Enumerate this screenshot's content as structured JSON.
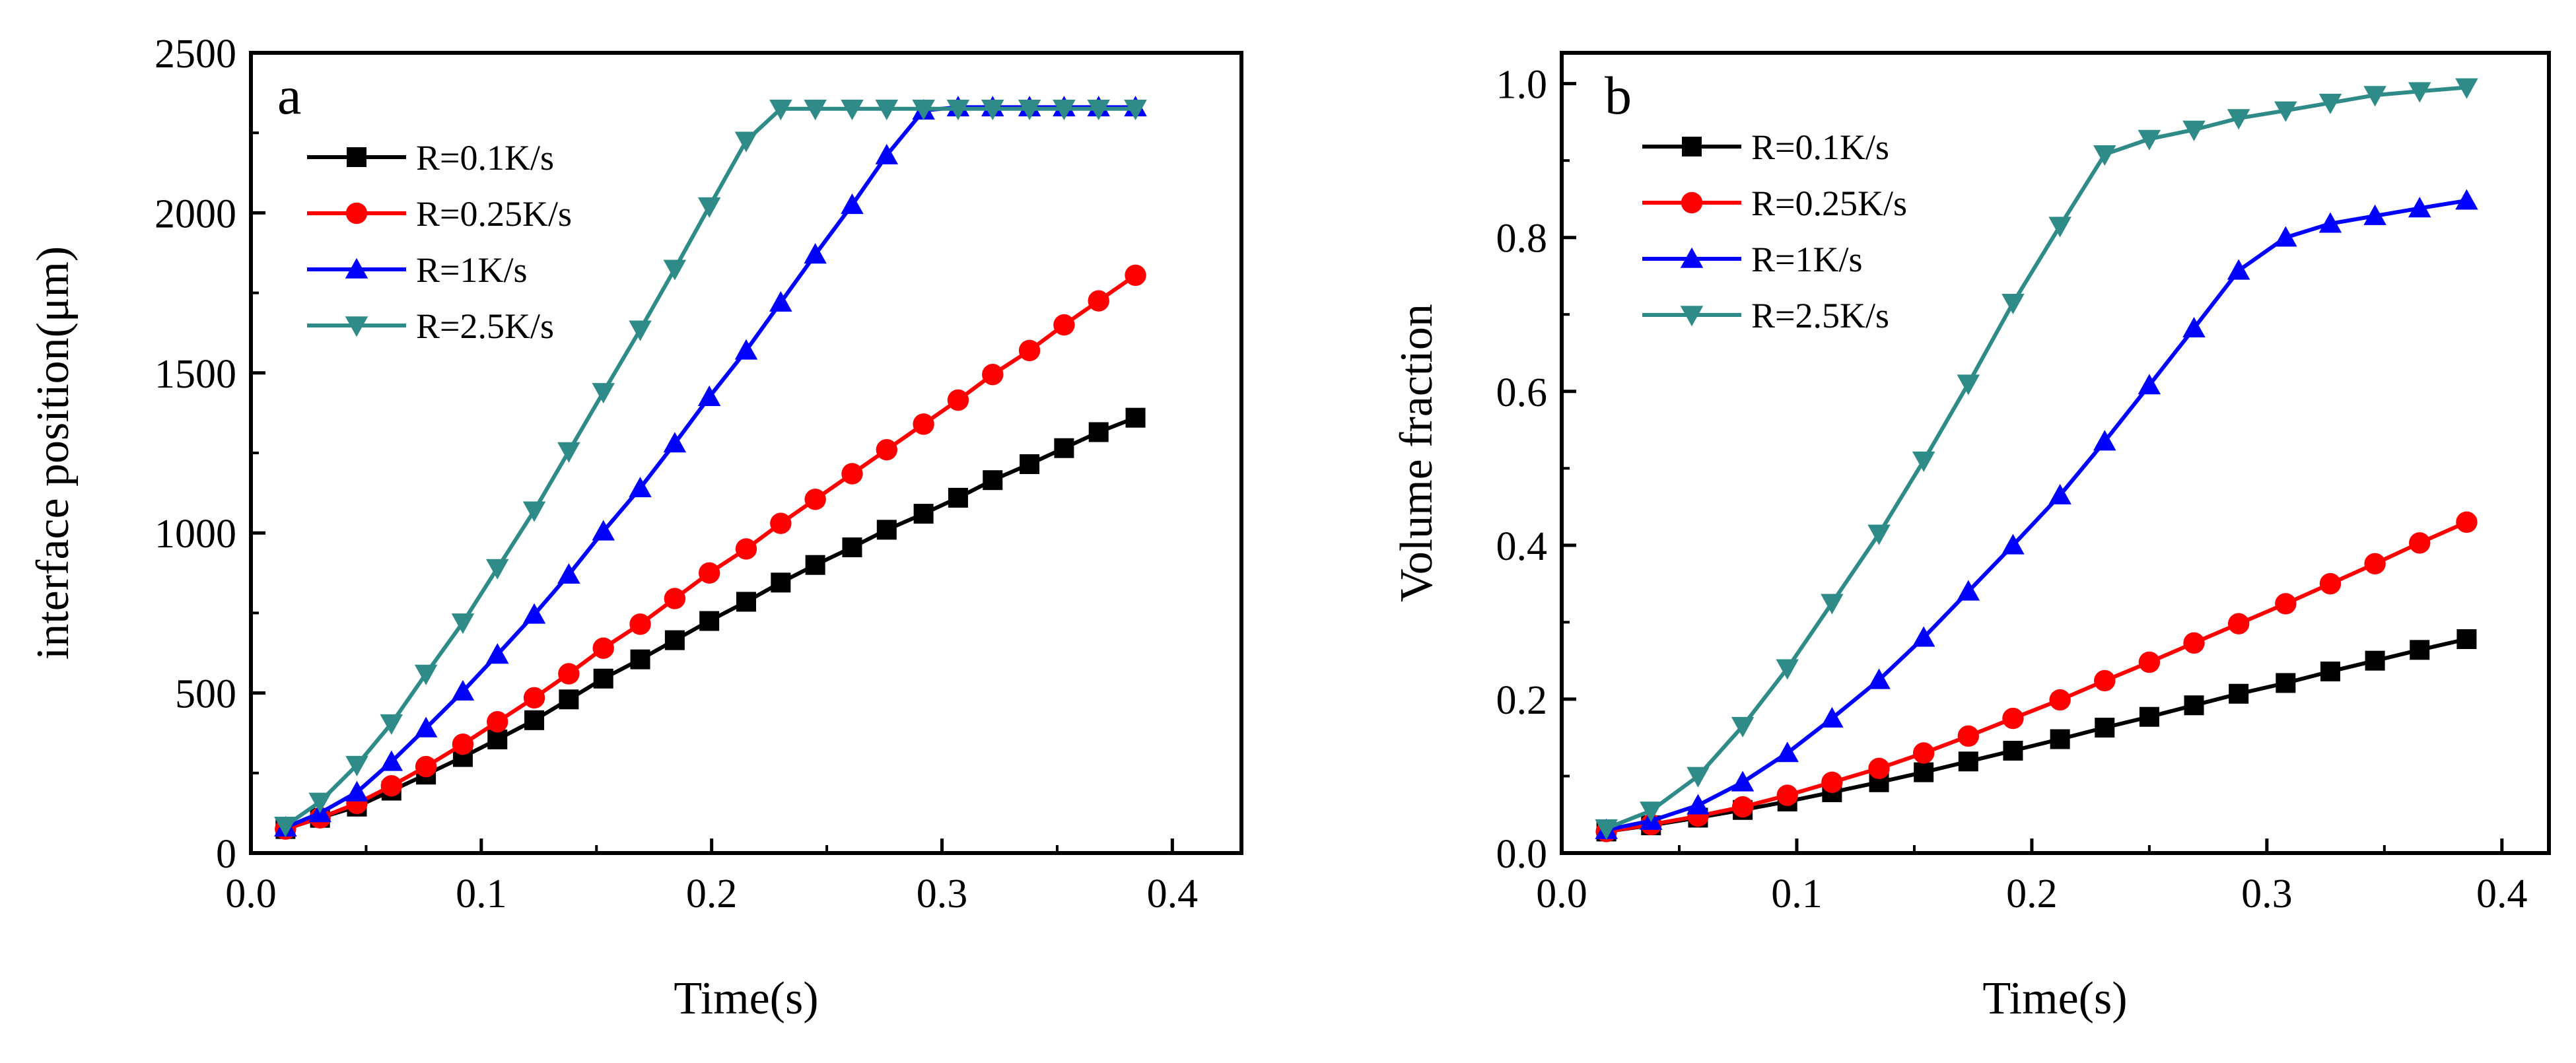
{
  "chart_data": [
    {
      "type": "line",
      "panel_label": "a",
      "title": "",
      "xlabel": "Time(s)",
      "ylabel": "interface position(μm)",
      "xlim": [
        0.0,
        0.43
      ],
      "ylim": [
        0,
        2500
      ],
      "xticks": [
        0.0,
        0.1,
        0.2,
        0.3,
        0.4
      ],
      "xtick_labels": [
        "0.0",
        "0.1",
        "0.2",
        "0.3",
        "0.4"
      ],
      "yticks": [
        0,
        500,
        1000,
        1500,
        2000,
        2500
      ],
      "ytick_labels": [
        "0",
        "500",
        "1000",
        "1500",
        "2000",
        "2500"
      ],
      "legend_position": "top-left",
      "x": [
        0.015,
        0.03,
        0.046,
        0.061,
        0.076,
        0.092,
        0.107,
        0.123,
        0.138,
        0.153,
        0.169,
        0.184,
        0.199,
        0.215,
        0.23,
        0.245,
        0.261,
        0.276,
        0.292,
        0.307,
        0.322,
        0.338,
        0.353,
        0.368,
        0.384
      ],
      "series": [
        {
          "name": "R=0.1K/s",
          "color": "#000000",
          "marker": "square",
          "values": [
            75,
            110,
            145,
            195,
            245,
            300,
            355,
            415,
            480,
            545,
            605,
            665,
            725,
            785,
            845,
            900,
            955,
            1010,
            1060,
            1110,
            1165,
            1215,
            1265,
            1315,
            1360
          ]
        },
        {
          "name": "R=0.25K/s",
          "color": "#ff0000",
          "marker": "circle",
          "values": [
            75,
            110,
            155,
            210,
            270,
            340,
            410,
            485,
            560,
            640,
            715,
            795,
            875,
            950,
            1030,
            1105,
            1185,
            1260,
            1340,
            1415,
            1495,
            1570,
            1650,
            1725,
            1805
          ]
        },
        {
          "name": "R=1K/s",
          "color": "#0000ff",
          "marker": "triangle-up",
          "values": [
            80,
            125,
            190,
            285,
            390,
            505,
            620,
            745,
            870,
            1005,
            1140,
            1280,
            1425,
            1570,
            1720,
            1870,
            2025,
            2180,
            2320,
            2330,
            2330,
            2330,
            2330,
            2330,
            2330
          ]
        },
        {
          "name": "R=2.5K/s",
          "color": "#2e8b87",
          "marker": "triangle-down",
          "values": [
            85,
            160,
            275,
            405,
            560,
            720,
            890,
            1070,
            1255,
            1440,
            1635,
            1825,
            2020,
            2225,
            2325,
            2325,
            2325,
            2325,
            2325,
            2325,
            2325,
            2325,
            2325,
            2325,
            2325
          ]
        }
      ]
    },
    {
      "type": "line",
      "panel_label": "b",
      "title": "",
      "xlabel": "Time(s)",
      "ylabel": "Volume fraction",
      "xlim": [
        0.0,
        0.42
      ],
      "ylim": [
        0.0,
        1.04
      ],
      "xticks": [
        0.0,
        0.1,
        0.2,
        0.3,
        0.4
      ],
      "xtick_labels": [
        "0.0",
        "0.1",
        "0.2",
        "0.3",
        "0.4"
      ],
      "yticks": [
        0.0,
        0.2,
        0.4,
        0.6,
        0.8,
        1.0
      ],
      "ytick_labels": [
        "0.0",
        "0.2",
        "0.4",
        "0.6",
        "0.8",
        "1.0"
      ],
      "legend_position": "top-left",
      "x": [
        0.019,
        0.038,
        0.058,
        0.077,
        0.096,
        0.115,
        0.135,
        0.154,
        0.173,
        0.192,
        0.212,
        0.231,
        0.25,
        0.269,
        0.288,
        0.308,
        0.327,
        0.346,
        0.365,
        0.385
      ],
      "series": [
        {
          "name": "R=0.1K/s",
          "color": "#000000",
          "marker": "square",
          "values": [
            0.028,
            0.036,
            0.046,
            0.056,
            0.067,
            0.079,
            0.092,
            0.105,
            0.119,
            0.133,
            0.148,
            0.163,
            0.177,
            0.192,
            0.207,
            0.221,
            0.236,
            0.25,
            0.264,
            0.278
          ]
        },
        {
          "name": "R=0.25K/s",
          "color": "#ff0000",
          "marker": "circle",
          "values": [
            0.028,
            0.037,
            0.048,
            0.06,
            0.075,
            0.092,
            0.11,
            0.13,
            0.152,
            0.175,
            0.199,
            0.224,
            0.248,
            0.273,
            0.298,
            0.324,
            0.35,
            0.376,
            0.403,
            0.43
          ]
        },
        {
          "name": "R=1K/s",
          "color": "#0000ff",
          "marker": "triangle-up",
          "values": [
            0.03,
            0.042,
            0.062,
            0.092,
            0.13,
            0.175,
            0.225,
            0.28,
            0.34,
            0.4,
            0.465,
            0.535,
            0.608,
            0.682,
            0.757,
            0.8,
            0.818,
            0.828,
            0.838,
            0.848
          ]
        },
        {
          "name": "R=2.5K/s",
          "color": "#2e8b87",
          "marker": "triangle-down",
          "values": [
            0.032,
            0.055,
            0.1,
            0.165,
            0.24,
            0.325,
            0.415,
            0.51,
            0.61,
            0.715,
            0.815,
            0.908,
            0.928,
            0.94,
            0.955,
            0.965,
            0.975,
            0.985,
            0.99,
            0.995
          ]
        }
      ]
    }
  ]
}
